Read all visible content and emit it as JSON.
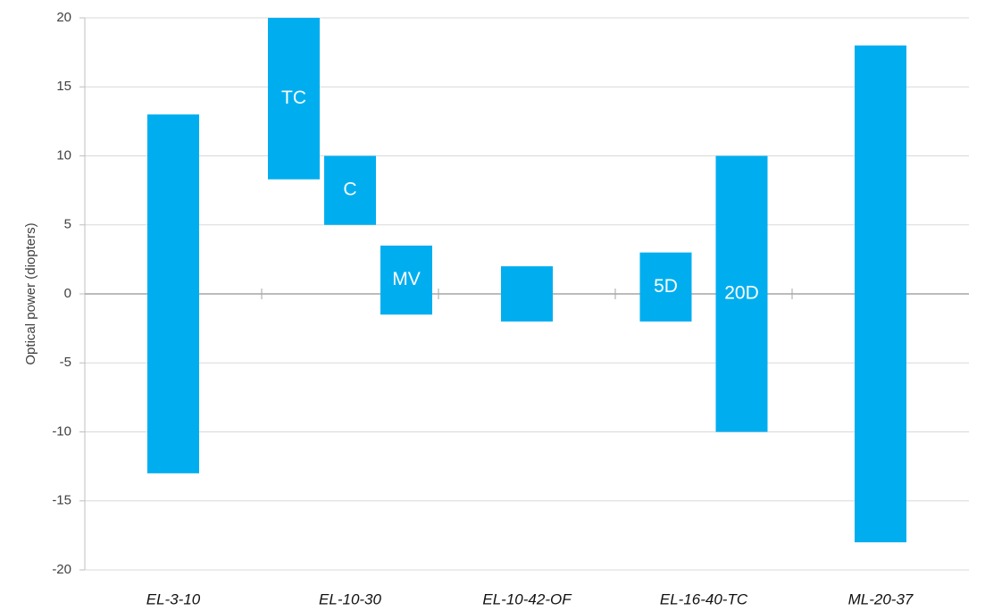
{
  "chart_data": {
    "type": "floating_bar",
    "y_label": "Optical power (diopters)",
    "categories": [
      "EL-3-10",
      "EL-10-30",
      "EL-10-42-OF",
      "EL-16-40-TC",
      "ML-20-37"
    ],
    "groups": [
      [
        {
          "low": -13,
          "high": 13
        }
      ],
      [
        {
          "label": "TC",
          "low": 8.3,
          "high": 20
        },
        {
          "label": "C",
          "low": 5,
          "high": 10
        },
        {
          "label": "MV",
          "low": -1.5,
          "high": 3.5
        }
      ],
      [
        {
          "low": -2,
          "high": 2
        }
      ],
      [
        {
          "label": "5D",
          "low": -2,
          "high": 3
        },
        {
          "label": "20D",
          "low": -10,
          "high": 10
        }
      ],
      [
        {
          "low": -18,
          "high": 18
        }
      ]
    ],
    "color": "#00aeef",
    "ylim": [
      -20,
      20
    ],
    "yticks": [
      -20,
      -15,
      -10,
      -5,
      0,
      5,
      10,
      15,
      20
    ],
    "grid": true
  }
}
